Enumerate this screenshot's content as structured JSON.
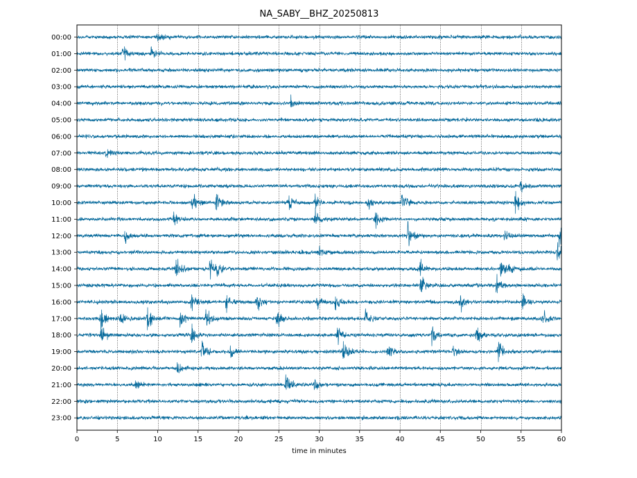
{
  "chart_data": {
    "type": "line",
    "title": "NA_SABY__BHZ_20250813",
    "xlabel": "time in minutes",
    "ylabel": "",
    "xlim": [
      0,
      60
    ],
    "x_ticks": [
      0,
      5,
      10,
      15,
      20,
      25,
      30,
      35,
      40,
      45,
      50,
      55,
      60
    ],
    "x_tick_labels": [
      "0",
      "5",
      "10",
      "15",
      "20",
      "25",
      "30",
      "35",
      "40",
      "45",
      "50",
      "55",
      "60"
    ],
    "grid": "vertical dotted lines at each 5-minute tick",
    "trace_color": "#006699",
    "rows": [
      {
        "label": "00:00",
        "events": [
          {
            "t": 10.0,
            "amp": 1.6
          }
        ]
      },
      {
        "label": "01:00",
        "events": [
          {
            "t": 5.7,
            "amp": 2.0
          },
          {
            "t": 9.2,
            "amp": 1.3
          }
        ]
      },
      {
        "label": "02:00",
        "events": []
      },
      {
        "label": "03:00",
        "events": []
      },
      {
        "label": "04:00",
        "events": [
          {
            "t": 26.5,
            "amp": 1.2
          }
        ]
      },
      {
        "label": "05:00",
        "events": []
      },
      {
        "label": "06:00",
        "events": []
      },
      {
        "label": "07:00",
        "events": [
          {
            "t": 3.6,
            "amp": 1.3
          }
        ]
      },
      {
        "label": "08:00",
        "events": []
      },
      {
        "label": "09:00",
        "events": [
          {
            "t": 55.0,
            "amp": 1.6
          }
        ]
      },
      {
        "label": "10:00",
        "events": [
          {
            "t": 14.3,
            "amp": 2.5
          },
          {
            "t": 17.3,
            "amp": 2.5
          },
          {
            "t": 26.2,
            "amp": 2.0
          },
          {
            "t": 29.5,
            "amp": 2.0
          },
          {
            "t": 36.0,
            "amp": 1.6
          },
          {
            "t": 40.3,
            "amp": 2.8
          },
          {
            "t": 54.3,
            "amp": 3.4
          }
        ]
      },
      {
        "label": "11:00",
        "events": [
          {
            "t": 12.0,
            "amp": 1.5
          },
          {
            "t": 29.5,
            "amp": 2.5
          },
          {
            "t": 37.0,
            "amp": 2.2
          }
        ]
      },
      {
        "label": "12:00",
        "events": [
          {
            "t": 6.0,
            "amp": 2.0
          },
          {
            "t": 41.0,
            "amp": 3.2
          },
          {
            "t": 53.0,
            "amp": 1.8
          },
          {
            "t": 59.8,
            "amp": 2.8
          }
        ]
      },
      {
        "label": "13:00",
        "events": [
          {
            "t": 30.0,
            "amp": 1.4
          },
          {
            "t": 59.5,
            "amp": 3.2
          }
        ]
      },
      {
        "label": "14:00",
        "events": [
          {
            "t": 12.3,
            "amp": 3.4
          },
          {
            "t": 16.5,
            "amp": 3.2
          },
          {
            "t": 17.3,
            "amp": 3.0
          },
          {
            "t": 42.5,
            "amp": 1.8
          },
          {
            "t": 52.5,
            "amp": 2.6
          },
          {
            "t": 53.5,
            "amp": 2.6
          }
        ]
      },
      {
        "label": "15:00",
        "events": [
          {
            "t": 42.6,
            "amp": 2.4
          },
          {
            "t": 52.0,
            "amp": 2.8
          }
        ]
      },
      {
        "label": "16:00",
        "events": [
          {
            "t": 14.2,
            "amp": 2.6
          },
          {
            "t": 18.5,
            "amp": 2.2
          },
          {
            "t": 22.3,
            "amp": 2.2
          },
          {
            "t": 29.8,
            "amp": 2.2
          },
          {
            "t": 32.0,
            "amp": 1.8
          },
          {
            "t": 47.5,
            "amp": 2.2
          },
          {
            "t": 55.2,
            "amp": 2.0
          }
        ]
      },
      {
        "label": "17:00",
        "events": [
          {
            "t": 3.0,
            "amp": 2.8
          },
          {
            "t": 5.5,
            "amp": 2.0
          },
          {
            "t": 8.8,
            "amp": 4.2
          },
          {
            "t": 12.8,
            "amp": 2.6
          },
          {
            "t": 16.0,
            "amp": 3.2
          },
          {
            "t": 24.8,
            "amp": 2.4
          },
          {
            "t": 35.8,
            "amp": 2.6
          },
          {
            "t": 57.8,
            "amp": 2.0
          }
        ]
      },
      {
        "label": "18:00",
        "events": [
          {
            "t": 3.0,
            "amp": 2.6
          },
          {
            "t": 14.2,
            "amp": 2.8
          },
          {
            "t": 32.3,
            "amp": 2.4
          },
          {
            "t": 44.0,
            "amp": 2.8
          },
          {
            "t": 49.5,
            "amp": 2.0
          }
        ]
      },
      {
        "label": "19:00",
        "events": [
          {
            "t": 15.5,
            "amp": 3.0
          },
          {
            "t": 19.0,
            "amp": 2.0
          },
          {
            "t": 33.0,
            "amp": 3.2
          },
          {
            "t": 38.5,
            "amp": 2.0
          },
          {
            "t": 46.5,
            "amp": 2.0
          },
          {
            "t": 52.2,
            "amp": 3.4
          }
        ]
      },
      {
        "label": "20:00",
        "events": [
          {
            "t": 12.5,
            "amp": 1.4
          }
        ]
      },
      {
        "label": "21:00",
        "events": [
          {
            "t": 7.3,
            "amp": 1.4
          },
          {
            "t": 25.9,
            "amp": 3.4
          },
          {
            "t": 29.5,
            "amp": 1.4
          }
        ]
      },
      {
        "label": "22:00",
        "events": []
      },
      {
        "label": "23:00",
        "events": []
      }
    ]
  }
}
